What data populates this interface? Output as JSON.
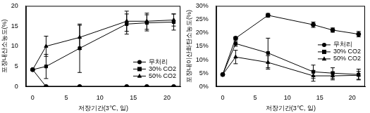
{
  "chart_data": [
    {
      "type": "line",
      "x_label": "저장기간(3℃, 일)",
      "y_label": "포장내산소농도(%)",
      "x": [
        0,
        2,
        7,
        14,
        17,
        21
      ],
      "series": [
        {
          "name": "무처리",
          "color": "#000000",
          "marker": "circle",
          "values": [
            4.2,
            0,
            0,
            0,
            0,
            0
          ],
          "errors": [
            null,
            null,
            null,
            null,
            null,
            null
          ]
        },
        {
          "name": "30% CO2",
          "color": "#000000",
          "marker": "square",
          "values": [
            4.2,
            5,
            9.5,
            15.5,
            15.8,
            16
          ],
          "errors": [
            null,
            3,
            6,
            2.5,
            2,
            2
          ]
        },
        {
          "name": "50% CO2",
          "color": "#000000",
          "marker": "triangle",
          "values": [
            4.2,
            10,
            12.2,
            16.2,
            16.2,
            16.5
          ],
          "errors": [
            null,
            2.5,
            3,
            2.5,
            2,
            1.5
          ]
        }
      ],
      "xlim": [
        -1,
        22
      ],
      "xticks": [
        0,
        5,
        10,
        15,
        20
      ],
      "ylim": [
        0,
        20
      ],
      "yticks": [
        0,
        5,
        10,
        15,
        20
      ],
      "grid": false,
      "legend": "lower right"
    },
    {
      "type": "line",
      "x_label": "저장기간(3℃, 일)",
      "y_label": "포장내이산화탄소농도(%)",
      "x": [
        0,
        2,
        7,
        14,
        17,
        21
      ],
      "series": [
        {
          "name": "무처리",
          "color": "#000000",
          "marker": "circle",
          "values": [
            4.5,
            18,
            26.5,
            23,
            21,
            19.5
          ],
          "errors": [
            null,
            0.5,
            0.7,
            1,
            0.8,
            1
          ]
        },
        {
          "name": "30% CO2",
          "color": "#000000",
          "marker": "square",
          "values": [
            4.5,
            16,
            12.5,
            5.5,
            5,
            4.5
          ],
          "errors": [
            null,
            1,
            5.5,
            2.5,
            2,
            2
          ]
        },
        {
          "name": "50% CO2",
          "color": "#000000",
          "marker": "triangle",
          "values": [
            4.5,
            11,
            9,
            4,
            4,
            4.2
          ],
          "errors": [
            null,
            2.5,
            2.5,
            2,
            1.5,
            1.5
          ]
        }
      ],
      "xlim": [
        -1,
        22
      ],
      "xticks": [
        0,
        5,
        10,
        15,
        20
      ],
      "ylim": [
        0,
        30
      ],
      "yticks": [
        {
          "value": 0,
          "label": "0%"
        },
        {
          "value": 5,
          "label": "5%"
        },
        {
          "value": 10,
          "label": "10%"
        },
        {
          "value": 15,
          "label": "15%"
        },
        {
          "value": 20,
          "label": "20%"
        },
        {
          "value": 25,
          "label": "25%"
        },
        {
          "value": 30,
          "label": "30%"
        }
      ],
      "grid": false,
      "legend": "center right"
    }
  ]
}
